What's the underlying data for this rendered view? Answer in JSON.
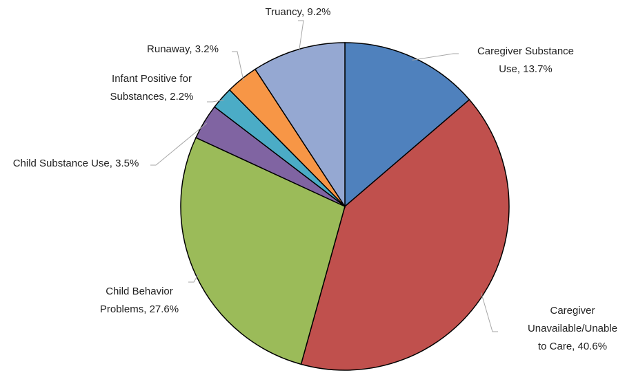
{
  "chart_data": {
    "type": "pie",
    "values": [
      13.7,
      40.6,
      27.6,
      3.5,
      2.2,
      3.2,
      9.2
    ],
    "value_labels": [
      "Caregiver Substance Use, 13.7%",
      "Caregiver Unavailable/Unable to Care, 40.6%",
      "Child Behavior Problems, 27.6%",
      "Child Substance Use, 3.5%",
      "Infant Positive for Substances, 2.2%",
      "Runaway, 3.2%",
      "Truancy, 9.2%"
    ],
    "colors": [
      "#4f81bd",
      "#c0504d",
      "#9bbb59",
      "#8064a2",
      "#4bacc6",
      "#f79646",
      "#95a8d2"
    ]
  }
}
